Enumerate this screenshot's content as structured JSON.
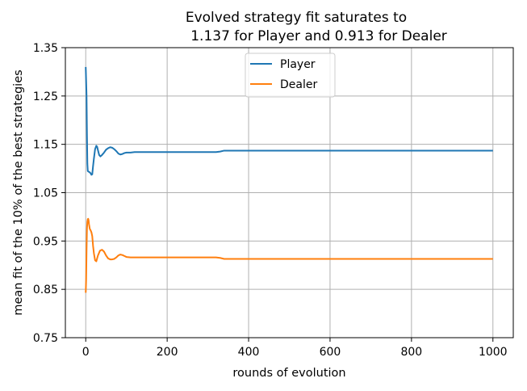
{
  "chart_data": {
    "type": "line",
    "title": [
      "Evolved strategy fit saturates to",
      "1.137 for Player and 0.913 for Dealer"
    ],
    "xlabel": "rounds of evolution",
    "ylabel": "mean fit of the 10% of the best strategies",
    "xlim": [
      -50,
      1050
    ],
    "ylim": [
      0.75,
      1.35
    ],
    "xticks": [
      0,
      200,
      400,
      600,
      800,
      1000
    ],
    "yticks": [
      0.75,
      0.85,
      0.95,
      1.05,
      1.15,
      1.25,
      1.35
    ],
    "xtick_labels": [
      "0",
      "200",
      "400",
      "600",
      "800",
      "1000"
    ],
    "ytick_labels": [
      "0.75",
      "0.85",
      "0.95",
      "1.05",
      "1.15",
      "1.25",
      "1.35"
    ],
    "grid": true,
    "legend": "top-center",
    "series": [
      {
        "name": "Player",
        "color": "#1f77b4",
        "x": [
          0,
          2,
          3,
          4,
          5,
          6,
          8,
          10,
          12,
          14,
          16,
          18,
          20,
          23,
          26,
          28,
          30,
          33,
          36,
          40,
          45,
          50,
          55,
          60,
          65,
          70,
          75,
          80,
          85,
          90,
          95,
          100,
          110,
          120,
          130,
          150,
          180,
          200,
          250,
          300,
          320,
          330,
          340,
          400,
          500,
          600,
          700,
          800,
          900,
          1000
        ],
        "y": [
          1.31,
          1.25,
          1.17,
          1.11,
          1.095,
          1.094,
          1.093,
          1.092,
          1.09,
          1.087,
          1.088,
          1.105,
          1.12,
          1.14,
          1.147,
          1.145,
          1.138,
          1.128,
          1.125,
          1.128,
          1.133,
          1.139,
          1.142,
          1.144,
          1.143,
          1.14,
          1.136,
          1.131,
          1.129,
          1.13,
          1.132,
          1.133,
          1.133,
          1.134,
          1.134,
          1.134,
          1.134,
          1.134,
          1.134,
          1.134,
          1.134,
          1.135,
          1.137,
          1.137,
          1.137,
          1.137,
          1.137,
          1.137,
          1.137,
          1.137
        ]
      },
      {
        "name": "Dealer",
        "color": "#ff7f0e",
        "x": [
          0,
          1,
          2,
          3,
          4,
          5,
          6,
          7,
          8,
          10,
          12,
          14,
          16,
          18,
          20,
          23,
          26,
          30,
          35,
          40,
          45,
          50,
          55,
          60,
          65,
          70,
          75,
          80,
          85,
          90,
          95,
          100,
          110,
          120,
          130,
          150,
          200,
          250,
          300,
          320,
          330,
          340,
          400,
          500,
          600,
          700,
          800,
          900,
          1000
        ],
        "y": [
          0.843,
          0.87,
          0.93,
          0.975,
          0.99,
          0.995,
          0.996,
          0.993,
          0.985,
          0.975,
          0.972,
          0.968,
          0.96,
          0.94,
          0.925,
          0.91,
          0.908,
          0.92,
          0.93,
          0.932,
          0.928,
          0.92,
          0.914,
          0.912,
          0.912,
          0.913,
          0.916,
          0.92,
          0.922,
          0.921,
          0.919,
          0.917,
          0.916,
          0.916,
          0.916,
          0.916,
          0.916,
          0.916,
          0.916,
          0.916,
          0.915,
          0.913,
          0.913,
          0.913,
          0.913,
          0.913,
          0.913,
          0.913,
          0.913
        ]
      }
    ]
  }
}
